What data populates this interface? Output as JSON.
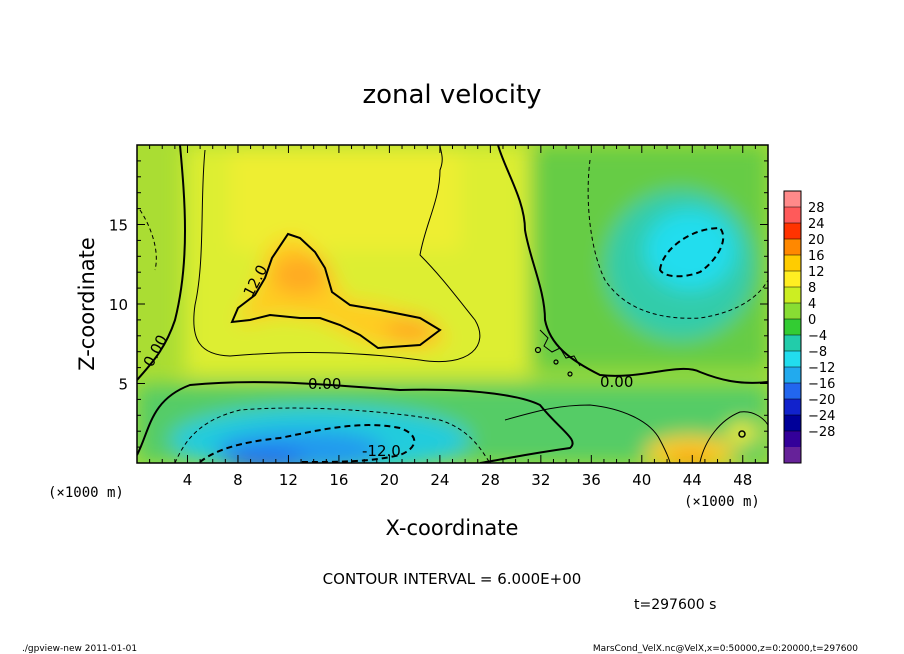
{
  "chart_data": {
    "type": "heatmap",
    "title": "zonal velocity",
    "xlabel": "X-coordinate",
    "ylabel": "Z-coordinate",
    "x_unit": "(×1000 m)",
    "y_unit": "(×1000 m)",
    "xlim": [
      0,
      50
    ],
    "ylim": [
      0,
      20
    ],
    "x_ticks": [
      4,
      8,
      12,
      16,
      20,
      24,
      28,
      32,
      36,
      40,
      44,
      48
    ],
    "y_ticks": [
      5,
      10,
      15
    ],
    "contour_interval_text": "CONTOUR INTERVAL = 6.000E+00",
    "contour_labels": [
      "12.0",
      "0.00",
      "0.00",
      "0.00",
      "-12.0"
    ],
    "colorbar_levels": [
      28,
      24,
      20,
      16,
      12,
      8,
      4,
      0,
      -4,
      -8,
      -12,
      -16,
      -20,
      -24,
      -28
    ],
    "colorbar_colors": [
      "#ff8a8a",
      "#ff5a5a",
      "#ff3300",
      "#ff8800",
      "#ffcc00",
      "#ffee22",
      "#ccee22",
      "#88dd33",
      "#33cc33",
      "#22ccaa",
      "#22ddee",
      "#22aaee",
      "#2266ee",
      "#1122cc",
      "#000099",
      "#330099",
      "#662299"
    ],
    "time_text": "t=297600  s",
    "footer_left": "./gpview-new   2011-01-01",
    "footer_right": "MarsCond_VelX.nc@VelX,x=0:50000,z=0:20000,t=297600"
  }
}
